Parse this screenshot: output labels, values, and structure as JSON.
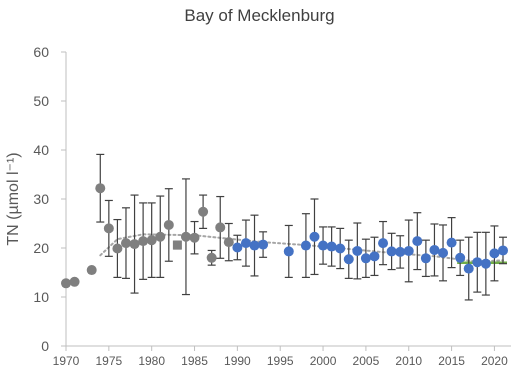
{
  "chart_data": {
    "type": "scatter",
    "title": "Bay of Mecklenburg",
    "ylabel": "TN (µmol l⁻¹)",
    "xlabel": "",
    "xlim": [
      1970,
      2021
    ],
    "ylim": [
      0,
      60
    ],
    "x_ticks": [
      1970,
      1975,
      1980,
      1985,
      1990,
      1995,
      2000,
      2005,
      2010,
      2015,
      2020
    ],
    "y_ticks": [
      0,
      10,
      20,
      30,
      40,
      50,
      60
    ],
    "grid": false,
    "legend": "none",
    "colors": {
      "grey_series": "#7f7f7f",
      "blue_series": "#4472c4",
      "trend_line": "#a5a5a5",
      "target_line": "#70ad47",
      "axis": "#bfbfbf",
      "text": "#595959"
    },
    "series": [
      {
        "marker": "circle",
        "color": "#7f7f7f",
        "points": [
          {
            "x": 1970,
            "y": 12.8,
            "err_lo": 12.3,
            "err_hi": 13.3
          },
          {
            "x": 1971,
            "y": 13.1,
            "err_lo": 12.8,
            "err_hi": 13.4
          },
          {
            "x": 1973,
            "y": 15.5,
            "err_lo": 15.2,
            "err_hi": 15.8
          },
          {
            "x": 1974,
            "y": 32.2,
            "err_lo": 25.3,
            "err_hi": 39.1
          },
          {
            "x": 1975,
            "y": 24.0,
            "err_lo": 18.3,
            "err_hi": 29.7
          },
          {
            "x": 1976,
            "y": 19.9,
            "err_lo": 14.0,
            "err_hi": 25.8
          },
          {
            "x": 1977,
            "y": 21.0,
            "err_lo": 13.8,
            "err_hi": 28.2
          },
          {
            "x": 1978,
            "y": 20.8,
            "err_lo": 10.8,
            "err_hi": 30.8
          },
          {
            "x": 1979,
            "y": 21.4,
            "err_lo": 13.6,
            "err_hi": 29.2
          },
          {
            "x": 1980,
            "y": 21.6,
            "err_lo": 14.0,
            "err_hi": 29.2
          },
          {
            "x": 1981,
            "y": 22.3,
            "err_lo": 14.0,
            "err_hi": 30.6
          },
          {
            "x": 1982,
            "y": 24.7,
            "err_lo": 17.3,
            "err_hi": 32.1
          },
          {
            "x": 1984,
            "y": 22.3,
            "err_lo": 10.5,
            "err_hi": 34.1
          },
          {
            "x": 1985,
            "y": 22.1,
            "err_lo": 18.8,
            "err_hi": 25.4
          },
          {
            "x": 1986,
            "y": 27.4,
            "err_lo": 24.0,
            "err_hi": 30.8
          },
          {
            "x": 1987,
            "y": 18.0,
            "err_lo": 16.5,
            "err_hi": 19.5
          },
          {
            "x": 1988,
            "y": 24.2,
            "err_lo": 17.9,
            "err_hi": 30.5
          },
          {
            "x": 1989,
            "y": 21.2,
            "err_lo": 17.4,
            "err_hi": 25.0
          }
        ]
      },
      {
        "marker": "square",
        "color": "#7f7f7f",
        "points": [
          {
            "x": 1983,
            "y": 20.6,
            "err_lo": 19.8,
            "err_hi": 21.4
          }
        ]
      },
      {
        "marker": "circle",
        "color": "#4472c4",
        "points": [
          {
            "x": 1990,
            "y": 20.1,
            "err_lo": 17.6,
            "err_hi": 22.6
          },
          {
            "x": 1991,
            "y": 21.0,
            "err_lo": 16.3,
            "err_hi": 25.7
          },
          {
            "x": 1992,
            "y": 20.5,
            "err_lo": 14.3,
            "err_hi": 26.7
          },
          {
            "x": 1993,
            "y": 20.7,
            "err_lo": 18.1,
            "err_hi": 23.3
          },
          {
            "x": 1996,
            "y": 19.3,
            "err_lo": 14.0,
            "err_hi": 24.6
          },
          {
            "x": 1998,
            "y": 20.5,
            "err_lo": 14.0,
            "err_hi": 27.0
          },
          {
            "x": 1999,
            "y": 22.3,
            "err_lo": 14.6,
            "err_hi": 30.0
          },
          {
            "x": 2000,
            "y": 20.5,
            "err_lo": 16.7,
            "err_hi": 24.3
          },
          {
            "x": 2001,
            "y": 20.3,
            "err_lo": 16.3,
            "err_hi": 24.3
          },
          {
            "x": 2002,
            "y": 19.9,
            "err_lo": 15.8,
            "err_hi": 24.0
          },
          {
            "x": 2003,
            "y": 17.7,
            "err_lo": 13.8,
            "err_hi": 21.6
          },
          {
            "x": 2004,
            "y": 19.4,
            "err_lo": 13.7,
            "err_hi": 25.1
          },
          {
            "x": 2005,
            "y": 17.9,
            "err_lo": 14.0,
            "err_hi": 21.8
          },
          {
            "x": 2006,
            "y": 18.3,
            "err_lo": 14.4,
            "err_hi": 22.2
          },
          {
            "x": 2007,
            "y": 21.0,
            "err_lo": 16.6,
            "err_hi": 25.4
          },
          {
            "x": 2008,
            "y": 19.3,
            "err_lo": 15.6,
            "err_hi": 23.0
          },
          {
            "x": 2009,
            "y": 19.2,
            "err_lo": 15.9,
            "err_hi": 22.5
          },
          {
            "x": 2010,
            "y": 19.4,
            "err_lo": 13.1,
            "err_hi": 25.7
          },
          {
            "x": 2011,
            "y": 21.4,
            "err_lo": 15.6,
            "err_hi": 27.2
          },
          {
            "x": 2012,
            "y": 17.9,
            "err_lo": 14.2,
            "err_hi": 21.6
          },
          {
            "x": 2013,
            "y": 19.6,
            "err_lo": 14.3,
            "err_hi": 24.9
          },
          {
            "x": 2014,
            "y": 19.0,
            "err_lo": 13.3,
            "err_hi": 24.7
          },
          {
            "x": 2015,
            "y": 21.1,
            "err_lo": 16.0,
            "err_hi": 26.2
          },
          {
            "x": 2016,
            "y": 18.0,
            "err_lo": 14.4,
            "err_hi": 21.6
          },
          {
            "x": 2017,
            "y": 15.8,
            "err_lo": 9.4,
            "err_hi": 22.2
          },
          {
            "x": 2018,
            "y": 17.1,
            "err_lo": 11.0,
            "err_hi": 23.2
          },
          {
            "x": 2019,
            "y": 16.8,
            "err_lo": 10.4,
            "err_hi": 23.2
          },
          {
            "x": 2020,
            "y": 18.9,
            "err_lo": 13.3,
            "err_hi": 24.5
          },
          {
            "x": 2021,
            "y": 19.5,
            "err_lo": 16.8,
            "err_hi": 22.2
          }
        ]
      }
    ],
    "trend": {
      "style": "dotted",
      "color": "#a5a5a5",
      "points": [
        [
          1974,
          18.5
        ],
        [
          1976,
          21.8
        ],
        [
          1979,
          22.8
        ],
        [
          1985,
          22.6
        ],
        [
          1989,
          21.9
        ],
        [
          1993,
          21.2
        ],
        [
          1998,
          20.6
        ],
        [
          2003,
          19.8
        ],
        [
          2008,
          19.0
        ],
        [
          2013,
          18.3
        ],
        [
          2018,
          17.2
        ],
        [
          2021,
          17.5
        ]
      ]
    },
    "target": {
      "color": "#70ad47",
      "y": 17.0,
      "x_start": 2016,
      "x_end": 2021
    }
  }
}
